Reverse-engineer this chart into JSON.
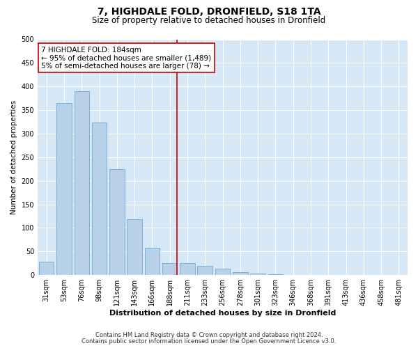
{
  "title": "7, HIGHDALE FOLD, DRONFIELD, S18 1TA",
  "subtitle": "Size of property relative to detached houses in Dronfield",
  "xlabel": "Distribution of detached houses by size in Dronfield",
  "ylabel": "Number of detached properties",
  "categories": [
    "31sqm",
    "53sqm",
    "76sqm",
    "98sqm",
    "121sqm",
    "143sqm",
    "166sqm",
    "188sqm",
    "211sqm",
    "233sqm",
    "256sqm",
    "278sqm",
    "301sqm",
    "323sqm",
    "346sqm",
    "368sqm",
    "391sqm",
    "413sqm",
    "436sqm",
    "458sqm",
    "481sqm"
  ],
  "values": [
    28,
    365,
    390,
    323,
    225,
    118,
    58,
    25,
    25,
    20,
    13,
    6,
    3,
    2,
    1,
    1,
    1,
    0,
    0,
    0,
    1
  ],
  "bar_color": "#b8d0e8",
  "bar_edge_color": "#6aaad4",
  "vline_index": 7,
  "vline_color": "#cc0000",
  "annotation_line1": "7 HIGHDALE FOLD: 184sqm",
  "annotation_line2": "← 95% of detached houses are smaller (1,489)",
  "annotation_line3": "5% of semi-detached houses are larger (78) →",
  "annotation_box_color": "#ffffff",
  "annotation_box_edge": "#cc0000",
  "ylim": [
    0,
    500
  ],
  "yticks": [
    0,
    50,
    100,
    150,
    200,
    250,
    300,
    350,
    400,
    450,
    500
  ],
  "footnote1": "Contains HM Land Registry data © Crown copyright and database right 2024.",
  "footnote2": "Contains public sector information licensed under the Open Government Licence v3.0.",
  "plot_bg_color": "#d6e8f5",
  "title_fontsize": 10,
  "subtitle_fontsize": 8.5,
  "xlabel_fontsize": 8,
  "ylabel_fontsize": 7.5,
  "tick_fontsize": 7,
  "annotation_fontsize": 7.5,
  "footnote_fontsize": 6
}
